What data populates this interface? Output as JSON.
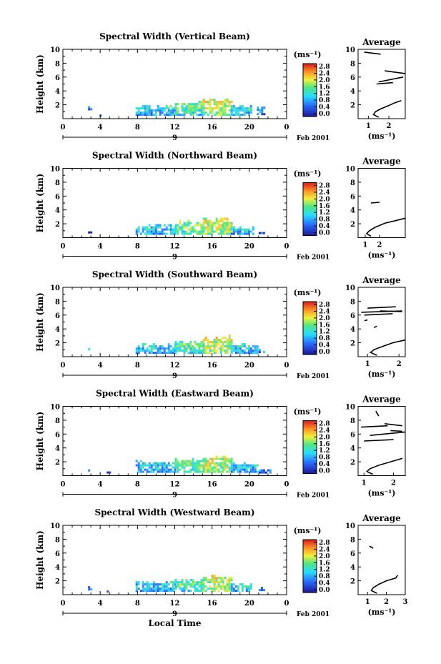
{
  "chart_data": [
    {
      "type": "heatmap",
      "title": "Spectral Width (Vertical Beam)",
      "ylabel": "Height (km)",
      "ylim": [
        0,
        10
      ],
      "yticks": [
        "2",
        "4",
        "6",
        "8",
        "10"
      ],
      "xlim": [
        0,
        24
      ],
      "xticks": [
        "0",
        "4",
        "8",
        "12",
        "16",
        "20",
        "0"
      ],
      "date_label": "Feb 2001",
      "day_label": "9",
      "colorbar": {
        "unit": "(ms⁻¹)",
        "ticks": [
          "2.8",
          "2.4",
          "2.0",
          "1.6",
          "1.2",
          "0.8",
          "0.4",
          "0.0"
        ]
      },
      "data": [
        {
          "t": 2.9,
          "h": [
            1.2,
            1.7
          ],
          "w": 0.4
        },
        {
          "t": 3.9,
          "h": [
            0.3,
            0.6
          ],
          "w": 0.3
        },
        {
          "t": [
            7.8,
            12.0
          ],
          "h": [
            0.4,
            1.9
          ],
          "w": 0.8
        },
        {
          "t": [
            12.0,
            15.0
          ],
          "h": [
            0.4,
            2.4
          ],
          "w": 1.2
        },
        {
          "t": [
            15.0,
            18.0
          ],
          "h": [
            0.4,
            2.8
          ],
          "w": 1.6
        },
        {
          "t": [
            18.0,
            20.3
          ],
          "h": [
            0.4,
            2.0
          ],
          "w": 0.9
        },
        {
          "t": [
            20.8,
            21.6
          ],
          "h": [
            0.5,
            1.7
          ],
          "w": 0.5
        }
      ],
      "average": {
        "xlim": [
          0.5,
          2.8
        ],
        "xticks": [
          "1",
          "2"
        ],
        "ylim": [
          0,
          10
        ],
        "yticks": [
          "2",
          "4",
          "6",
          "8",
          "10"
        ],
        "xlabel": "(ms⁻¹)",
        "title": "Average",
        "profile": [
          [
            1.5,
            0.2
          ],
          [
            1.25,
            0.6
          ],
          [
            1.35,
            1.0
          ],
          [
            1.6,
            1.4
          ],
          [
            2.0,
            1.9
          ],
          [
            2.3,
            2.3
          ],
          [
            2.6,
            2.6
          ]
        ],
        "upper": [
          [
            [
              0.8,
              9.6
            ],
            [
              1.6,
              9.3
            ]
          ],
          [
            [
              1.8,
              6.9
            ],
            [
              2.8,
              6.5
            ]
          ],
          [
            [
              1.5,
              5.3
            ],
            [
              2.7,
              6.0
            ]
          ],
          [
            [
              1.4,
              5.0
            ],
            [
              2.2,
              5.2
            ]
          ]
        ]
      }
    },
    {
      "type": "heatmap",
      "title": "Spectral Width (Northward Beam)",
      "ylabel": "Height (km)",
      "ylim": [
        0,
        10
      ],
      "yticks": [
        "2",
        "4",
        "6",
        "8",
        "10"
      ],
      "xlim": [
        0,
        24
      ],
      "xticks": [
        "0",
        "4",
        "8",
        "12",
        "16",
        "20",
        "0"
      ],
      "date_label": "Feb 2001",
      "day_label": "9",
      "colorbar": {
        "unit": "(ms⁻¹)",
        "ticks": [
          "2.8",
          "2.4",
          "2.0",
          "1.6",
          "1.2",
          "0.8",
          "0.4",
          "0.0"
        ]
      },
      "data": [
        {
          "t": 2.9,
          "h": [
            0.6,
            1.1
          ],
          "w": 0.4
        },
        {
          "t": [
            7.8,
            12.0
          ],
          "h": [
            0.4,
            1.8
          ],
          "w": 0.8
        },
        {
          "t": [
            12.0,
            15.0
          ],
          "h": [
            0.4,
            2.3
          ],
          "w": 1.3
        },
        {
          "t": [
            15.0,
            18.0
          ],
          "h": [
            0.4,
            2.8
          ],
          "w": 1.6
        },
        {
          "t": [
            18.0,
            20.5
          ],
          "h": [
            0.4,
            1.6
          ],
          "w": 0.8
        },
        {
          "t": [
            21.0,
            21.6
          ],
          "h": [
            0.5,
            1.1
          ],
          "w": 0.5
        }
      ],
      "average": {
        "xlim": [
          0.5,
          3.8
        ],
        "xticks": [
          "1",
          "2"
        ],
        "ylim": [
          0,
          10
        ],
        "yticks": [
          "2",
          "4",
          "6",
          "8",
          "10"
        ],
        "xlabel": "(ms⁻¹)",
        "title": "Average",
        "profile": [
          [
            1.4,
            0.2
          ],
          [
            1.1,
            0.6
          ],
          [
            1.3,
            1.0
          ],
          [
            1.7,
            1.5
          ],
          [
            2.4,
            2.1
          ],
          [
            3.2,
            2.5
          ],
          [
            3.8,
            2.8
          ]
        ],
        "upper": [
          [
            [
              1.4,
              5.0
            ],
            [
              2.0,
              5.1
            ]
          ]
        ]
      }
    },
    {
      "type": "heatmap",
      "title": "Spectral Width (Southward Beam)",
      "ylabel": "Height (km)",
      "ylim": [
        0,
        10
      ],
      "yticks": [
        "2",
        "4",
        "6",
        "8",
        "10"
      ],
      "xlim": [
        0,
        24
      ],
      "xticks": [
        "0",
        "4",
        "8",
        "12",
        "16",
        "20",
        "0"
      ],
      "date_label": "Feb 2001",
      "day_label": "9",
      "colorbar": {
        "unit": "(ms⁻¹)",
        "ticks": [
          "2.8",
          "2.4",
          "2.0",
          "1.6",
          "1.2",
          "0.8",
          "0.4",
          "0.0"
        ]
      },
      "data": [
        {
          "t": 2.9,
          "h": [
            0.6,
            1.1
          ],
          "w": 0.4
        },
        {
          "t": [
            7.8,
            12.0
          ],
          "h": [
            0.4,
            1.8
          ],
          "w": 0.8
        },
        {
          "t": [
            12.0,
            15.0
          ],
          "h": [
            0.4,
            2.3
          ],
          "w": 1.2
        },
        {
          "t": [
            15.0,
            18.0
          ],
          "h": [
            0.4,
            2.9
          ],
          "w": 1.6
        },
        {
          "t": [
            18.0,
            20.8
          ],
          "h": [
            0.4,
            1.8
          ],
          "w": 0.8
        },
        {
          "t": [
            21.0,
            21.6
          ],
          "h": [
            0.5,
            1.0
          ],
          "w": 0.5
        }
      ],
      "average": {
        "xlim": [
          0.7,
          2.2
        ],
        "xticks": [
          "1",
          "2"
        ],
        "ylim": [
          0,
          10
        ],
        "yticks": [
          "2",
          "4",
          "6",
          "8",
          "10"
        ],
        "xlabel": "(ms⁻¹)",
        "title": "Average",
        "profile": [
          [
            1.3,
            0.2
          ],
          [
            1.1,
            0.6
          ],
          [
            1.2,
            1.0
          ],
          [
            1.5,
            1.5
          ],
          [
            1.8,
            2.0
          ],
          [
            2.2,
            2.4
          ]
        ],
        "upper": [
          [
            [
              1.0,
              7.0
            ],
            [
              1.9,
              7.2
            ]
          ],
          [
            [
              0.8,
              6.4
            ],
            [
              2.1,
              6.6
            ]
          ],
          [
            [
              0.9,
              6.0
            ],
            [
              1.8,
              6.2
            ]
          ],
          [
            [
              1.4,
              6.6
            ],
            [
              2.1,
              6.5
            ]
          ],
          [
            [
              1.2,
              4.2
            ],
            [
              1.3,
              4.4
            ]
          ],
          [
            [
              0.9,
              5.2
            ],
            [
              1.0,
              5.3
            ]
          ]
        ]
      }
    },
    {
      "type": "heatmap",
      "title": "Spectral Width (Eastward Beam)",
      "ylabel": "Height (km)",
      "ylim": [
        0,
        10
      ],
      "yticks": [
        "2",
        "4",
        "6",
        "8",
        "10"
      ],
      "xlim": [
        0,
        24
      ],
      "xticks": [
        "0",
        "4",
        "8",
        "12",
        "16",
        "20",
        "0"
      ],
      "date_label": "Feb 2001",
      "day_label": "9",
      "colorbar": {
        "unit": "(ms⁻¹)",
        "ticks": [
          "2.8",
          "2.4",
          "2.0",
          "1.6",
          "1.2",
          "0.8",
          "0.4",
          "0.0"
        ]
      },
      "data": [
        {
          "t": 2.9,
          "h": [
            0.6,
            1.1
          ],
          "w": 0.4
        },
        {
          "t": 4.9,
          "h": [
            0.3,
            0.5
          ],
          "w": 0.3
        },
        {
          "t": [
            7.8,
            12.0
          ],
          "h": [
            0.4,
            2.0
          ],
          "w": 0.8
        },
        {
          "t": [
            12.0,
            15.0
          ],
          "h": [
            0.4,
            2.4
          ],
          "w": 1.3
        },
        {
          "t": [
            15.0,
            18.0
          ],
          "h": [
            0.4,
            2.8
          ],
          "w": 1.6
        },
        {
          "t": [
            18.0,
            20.8
          ],
          "h": [
            0.4,
            1.8
          ],
          "w": 0.8
        },
        {
          "t": [
            21.0,
            22.3
          ],
          "h": [
            0.3,
            1.0
          ],
          "w": 0.5
        }
      ],
      "average": {
        "xlim": [
          0.8,
          2.4
        ],
        "xticks": [
          "1",
          "2"
        ],
        "ylim": [
          0,
          10
        ],
        "yticks": [
          "2",
          "4",
          "6",
          "8",
          "10"
        ],
        "xlabel": "(ms⁻¹)",
        "title": "Average",
        "profile": [
          [
            1.3,
            0.2
          ],
          [
            1.1,
            0.6
          ],
          [
            1.2,
            1.0
          ],
          [
            1.5,
            1.5
          ],
          [
            1.9,
            2.0
          ],
          [
            2.3,
            2.5
          ]
        ],
        "upper": [
          [
            [
              1.4,
              9.3
            ],
            [
              1.5,
              8.6
            ]
          ],
          [
            [
              0.9,
              7.0
            ],
            [
              1.8,
              7.2
            ]
          ],
          [
            [
              1.2,
              5.8
            ],
            [
              2.4,
              6.3
            ]
          ],
          [
            [
              1.0,
              5.0
            ],
            [
              2.0,
              5.2
            ]
          ],
          [
            [
              1.7,
              7.5
            ],
            [
              2.3,
              7.2
            ]
          ],
          [
            [
              1.9,
              6.5
            ],
            [
              2.3,
              6.4
            ]
          ]
        ]
      }
    },
    {
      "type": "heatmap",
      "title": "Spectral Width (Westward Beam)",
      "ylabel": "Height (km)",
      "ylim": [
        0,
        10
      ],
      "yticks": [
        "2",
        "4",
        "6",
        "8",
        "10"
      ],
      "xlim": [
        0,
        24
      ],
      "xticks": [
        "0",
        "4",
        "8",
        "12",
        "16",
        "20",
        "0"
      ],
      "xlabel": "Local Time",
      "date_label": "Feb 2001",
      "day_label": "9",
      "colorbar": {
        "unit": "(ms⁻¹)",
        "ticks": [
          "2.8",
          "2.4",
          "2.0",
          "1.6",
          "1.2",
          "0.8",
          "0.4",
          "0.0"
        ]
      },
      "data": [
        {
          "t": 2.9,
          "h": [
            0.6,
            1.1
          ],
          "w": 0.4
        },
        {
          "t": 4.9,
          "h": [
            0.3,
            0.5
          ],
          "w": 0.3
        },
        {
          "t": [
            7.8,
            12.0
          ],
          "h": [
            0.4,
            1.9
          ],
          "w": 0.8
        },
        {
          "t": [
            12.0,
            15.0
          ],
          "h": [
            0.4,
            2.3
          ],
          "w": 1.2
        },
        {
          "t": [
            15.0,
            18.0
          ],
          "h": [
            0.4,
            2.7
          ],
          "w": 1.6
        },
        {
          "t": [
            18.0,
            20.3
          ],
          "h": [
            0.4,
            1.6
          ],
          "w": 0.8
        },
        {
          "t": [
            21.0,
            21.6
          ],
          "h": [
            0.5,
            1.0
          ],
          "w": 0.5
        }
      ],
      "average": {
        "xlim": [
          0.5,
          3.0
        ],
        "xticks": [
          "1",
          "2",
          "3"
        ],
        "ylim": [
          0,
          10
        ],
        "yticks": [
          "2",
          "4",
          "6",
          "8",
          "10"
        ],
        "xlabel": "(ms⁻¹)",
        "title": "Average",
        "profile": [
          [
            1.5,
            0.2
          ],
          [
            1.2,
            0.6
          ],
          [
            1.3,
            1.0
          ],
          [
            1.6,
            1.5
          ],
          [
            2.0,
            2.0
          ],
          [
            2.5,
            2.4
          ],
          [
            2.6,
            2.8
          ]
        ],
        "upper": [
          [
            [
              1.1,
              7.0
            ],
            [
              1.3,
              6.7
            ]
          ]
        ]
      }
    }
  ]
}
